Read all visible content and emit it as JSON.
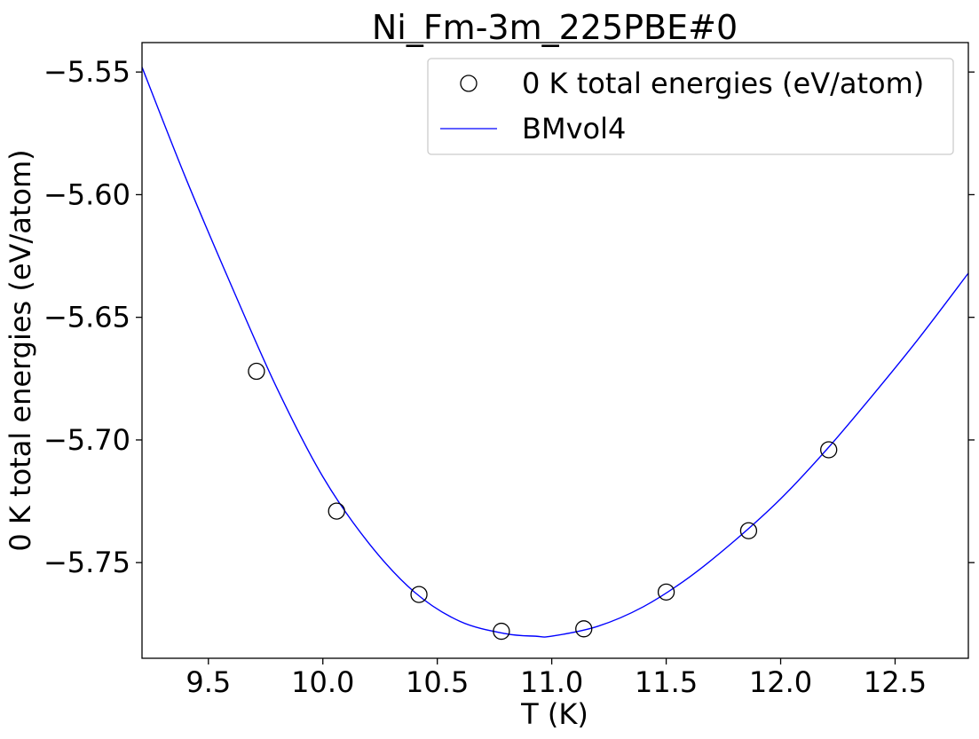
{
  "chart_data": {
    "type": "scatter",
    "title": "Ni_Fm-3m_225PBE#0",
    "xlabel": "T (K)",
    "ylabel": "0 K total energies (eV/atom)",
    "xlim": [
      9.21,
      12.82
    ],
    "ylim": [
      -5.789,
      -5.538
    ],
    "xticks": [
      9.5,
      10.0,
      10.5,
      11.0,
      11.5,
      12.0,
      12.5
    ],
    "xtick_labels": [
      "9.5",
      "10.0",
      "10.5",
      "11.0",
      "11.5",
      "12.0",
      "12.5"
    ],
    "yticks": [
      -5.55,
      -5.6,
      -5.65,
      -5.7,
      -5.75
    ],
    "ytick_labels": [
      "−5.55",
      "−5.60",
      "−5.65",
      "−5.70",
      "−5.75"
    ],
    "grid": false,
    "legend_position": "top-right",
    "series": [
      {
        "name": "0 K total energies (eV/atom)",
        "kind": "scatter",
        "marker": "open-circle",
        "color": "#000000",
        "x": [
          9.71,
          10.06,
          10.42,
          10.78,
          11.14,
          11.5,
          11.86,
          12.21
        ],
        "y": [
          -5.672,
          -5.729,
          -5.763,
          -5.778,
          -5.777,
          -5.762,
          -5.737,
          -5.704
        ]
      },
      {
        "name": "BMvol4",
        "kind": "line",
        "color": "#0000ff",
        "x": [
          9.21,
          9.4,
          9.6,
          9.8,
          10.0,
          10.2,
          10.4,
          10.6,
          10.8,
          10.93,
          11.0,
          11.2,
          11.4,
          11.6,
          11.8,
          12.0,
          12.2,
          12.4,
          12.6,
          12.82
        ],
        "y": [
          -5.548,
          -5.593,
          -5.637,
          -5.679,
          -5.715,
          -5.742,
          -5.762,
          -5.774,
          -5.779,
          -5.78,
          -5.78,
          -5.776,
          -5.768,
          -5.756,
          -5.741,
          -5.724,
          -5.704,
          -5.682,
          -5.659,
          -5.632
        ]
      }
    ]
  }
}
